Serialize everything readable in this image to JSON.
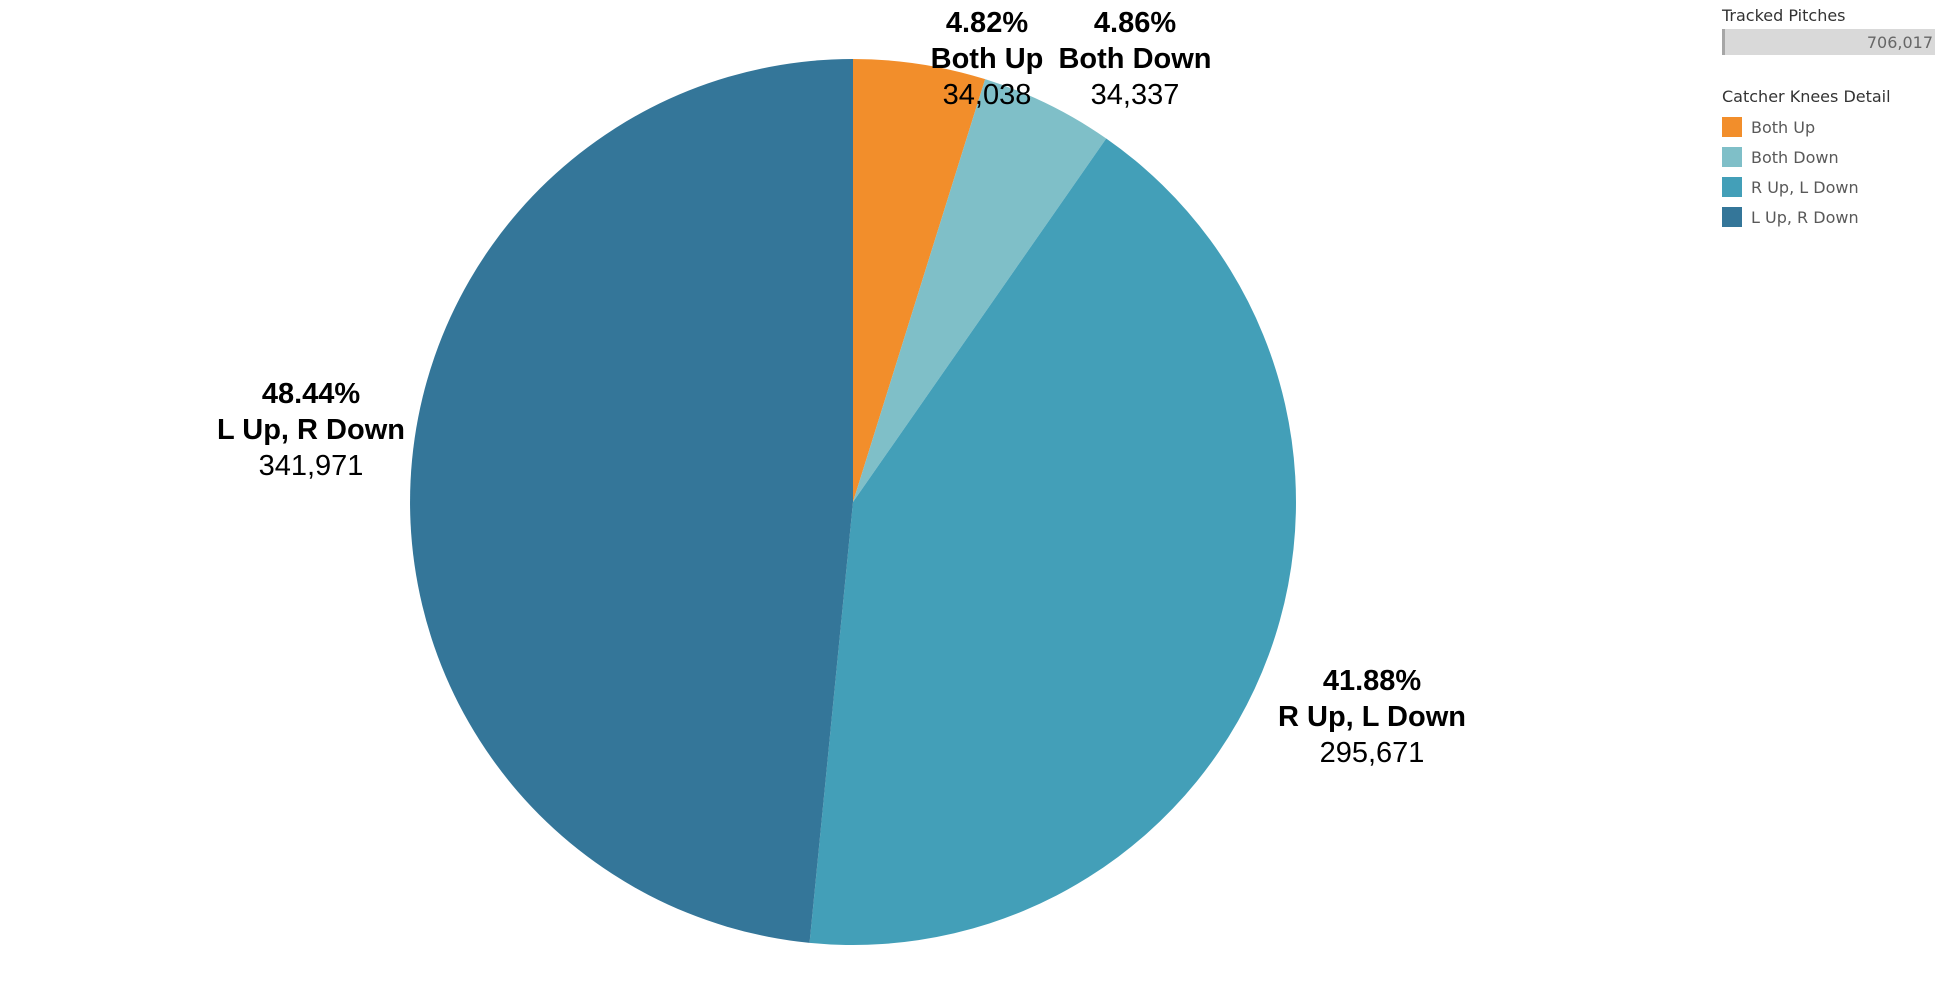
{
  "chart_data": {
    "type": "pie",
    "categories": [
      "Both Up",
      "Both Down",
      "R Up, L Down",
      "L Up, R Down"
    ],
    "values": [
      34038,
      34337,
      295671,
      341971
    ],
    "percent_labels": [
      "4.82%",
      "4.86%",
      "41.88%",
      "48.44%"
    ],
    "count_labels": [
      "34,038",
      "34,337",
      "295,671",
      "341,971"
    ],
    "colors": [
      "#f28e2b",
      "#7fbfc8",
      "#439fb8",
      "#347699"
    ],
    "start_angle_deg": 0,
    "direction": "clockwise",
    "legend_position": "top-right"
  },
  "total_panel": {
    "title": "Tracked Pitches",
    "value_label": "706,017",
    "fill_fraction": 1.0
  },
  "legend": {
    "title": "Catcher Knees Detail",
    "items": [
      {
        "label": "Both Up",
        "color": "#f28e2b"
      },
      {
        "label": "Both Down",
        "color": "#7fbfc8"
      },
      {
        "label": "R Up, L Down",
        "color": "#439fb8"
      },
      {
        "label": "L Up, R Down",
        "color": "#347699"
      }
    ]
  }
}
